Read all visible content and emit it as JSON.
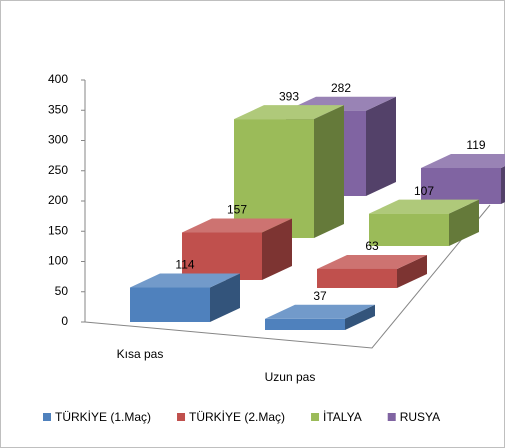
{
  "chart_data": {
    "type": "bar",
    "categories": [
      "Kısa pas",
      "Uzun pas"
    ],
    "series": [
      {
        "name": "TÜRKİYE (1.Maç)",
        "color": "#4f81bd",
        "values": [
          114,
          37
        ]
      },
      {
        "name": "TÜRKİYE (2.Maç)",
        "color": "#c0504d",
        "values": [
          157,
          63
        ]
      },
      {
        "name": "İTALYA",
        "color": "#9bbb59",
        "values": [
          393,
          107
        ]
      },
      {
        "name": "RUSYA",
        "color": "#8064a2",
        "values": [
          282,
          119
        ]
      }
    ],
    "ylim": [
      0,
      400
    ],
    "yticks": [
      0,
      50,
      100,
      150,
      200,
      250,
      300,
      350,
      400
    ],
    "legend": "bottom"
  }
}
